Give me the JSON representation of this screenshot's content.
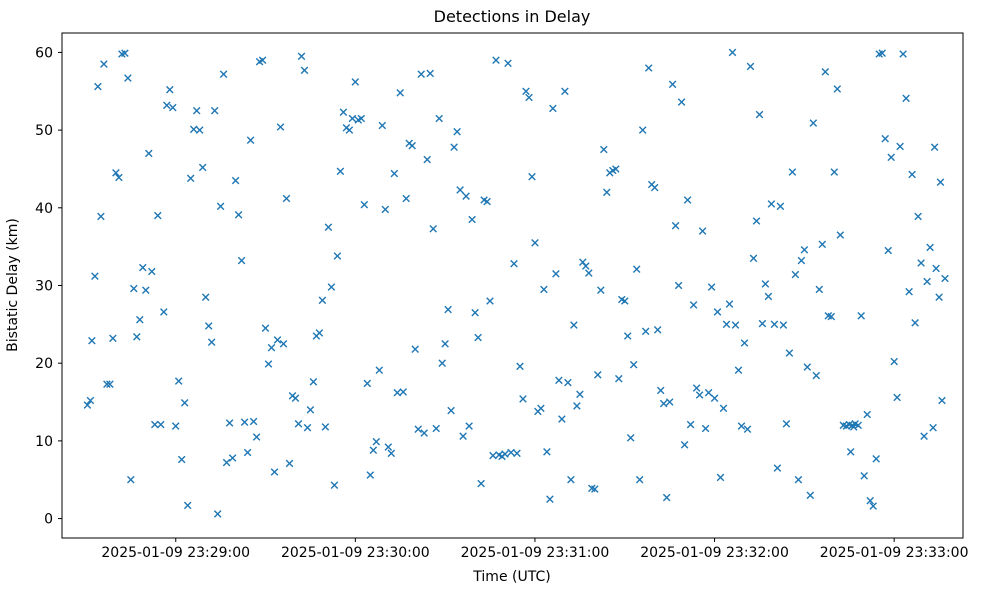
{
  "chart_data": {
    "type": "scatter",
    "title": "Detections in Delay",
    "xlabel": "Time (UTC)",
    "ylabel": "Bistatic Delay (km)",
    "marker": "x",
    "marker_color": "#1f77b4",
    "background_color": "#ffffff",
    "axes_color": "#000000",
    "grid": false,
    "legend": null,
    "x_ticks": [
      {
        "seconds": 60,
        "label": "2025-01-09 23:29:00"
      },
      {
        "seconds": 120,
        "label": "2025-01-09 23:30:00"
      },
      {
        "seconds": 180,
        "label": "2025-01-09 23:31:00"
      },
      {
        "seconds": 240,
        "label": "2025-01-09 23:32:00"
      },
      {
        "seconds": 300,
        "label": "2025-01-09 23:33:00"
      }
    ],
    "x_range_seconds": [
      22,
      323
    ],
    "y_ticks": [
      0,
      10,
      20,
      30,
      40,
      50,
      60
    ],
    "ylim": [
      -2.5,
      62.5
    ],
    "points": [
      [
        30.5,
        14.6
      ],
      [
        31.5,
        15.2
      ],
      [
        32,
        22.9
      ],
      [
        33,
        31.2
      ],
      [
        34,
        55.6
      ],
      [
        35,
        38.9
      ],
      [
        36,
        58.5
      ],
      [
        37,
        17.3
      ],
      [
        38,
        17.3
      ],
      [
        39,
        23.2
      ],
      [
        40,
        44.5
      ],
      [
        41,
        43.9
      ],
      [
        42,
        59.8
      ],
      [
        43,
        59.9
      ],
      [
        44,
        56.7
      ],
      [
        45,
        5.0
      ],
      [
        46,
        29.6
      ],
      [
        47,
        23.4
      ],
      [
        48,
        25.6
      ],
      [
        49,
        32.3
      ],
      [
        50,
        29.4
      ],
      [
        51,
        47.0
      ],
      [
        52,
        31.8
      ],
      [
        53,
        12.1
      ],
      [
        54,
        39.0
      ],
      [
        55,
        12.1
      ],
      [
        56,
        26.6
      ],
      [
        57,
        53.2
      ],
      [
        58,
        55.2
      ],
      [
        59,
        52.9
      ],
      [
        60,
        11.9
      ],
      [
        61,
        17.7
      ],
      [
        62,
        7.6
      ],
      [
        63,
        14.9
      ],
      [
        64,
        1.7
      ],
      [
        65,
        43.8
      ],
      [
        66,
        50.1
      ],
      [
        67,
        52.5
      ],
      [
        68,
        50.0
      ],
      [
        69,
        45.2
      ],
      [
        70,
        28.5
      ],
      [
        71,
        24.8
      ],
      [
        72,
        22.7
      ],
      [
        73,
        52.5
      ],
      [
        74,
        0.6
      ],
      [
        75,
        40.2
      ],
      [
        76,
        57.2
      ],
      [
        77,
        7.2
      ],
      [
        78,
        12.3
      ],
      [
        79,
        7.8
      ],
      [
        80,
        43.5
      ],
      [
        81,
        39.1
      ],
      [
        82,
        33.2
      ],
      [
        83,
        12.4
      ],
      [
        84,
        8.5
      ],
      [
        85,
        48.7
      ],
      [
        86,
        12.5
      ],
      [
        87,
        10.5
      ],
      [
        88,
        58.8
      ],
      [
        89,
        59.0
      ],
      [
        90,
        24.5
      ],
      [
        91,
        19.9
      ],
      [
        92,
        22.0
      ],
      [
        93,
        6.0
      ],
      [
        94,
        23.0
      ],
      [
        95,
        50.4
      ],
      [
        96,
        22.5
      ],
      [
        97,
        41.2
      ],
      [
        98,
        7.1
      ],
      [
        99,
        15.8
      ],
      [
        100,
        15.5
      ],
      [
        101,
        12.2
      ],
      [
        102,
        59.5
      ],
      [
        103,
        57.7
      ],
      [
        104,
        11.7
      ],
      [
        105,
        14.0
      ],
      [
        106,
        17.6
      ],
      [
        107,
        23.5
      ],
      [
        108,
        23.9
      ],
      [
        109,
        28.1
      ],
      [
        110,
        11.8
      ],
      [
        111,
        37.5
      ],
      [
        112,
        29.8
      ],
      [
        113,
        4.3
      ],
      [
        114,
        33.8
      ],
      [
        115,
        44.7
      ],
      [
        116,
        52.3
      ],
      [
        117,
        50.3
      ],
      [
        118,
        50.0
      ],
      [
        119,
        51.5
      ],
      [
        120,
        56.2
      ],
      [
        121,
        51.3
      ],
      [
        122,
        51.5
      ],
      [
        123,
        40.4
      ],
      [
        124,
        17.4
      ],
      [
        125,
        5.6
      ],
      [
        126,
        8.8
      ],
      [
        127,
        9.9
      ],
      [
        128,
        19.1
      ],
      [
        129,
        50.6
      ],
      [
        130,
        39.8
      ],
      [
        131,
        9.2
      ],
      [
        132,
        8.4
      ],
      [
        133,
        44.4
      ],
      [
        134,
        16.2
      ],
      [
        135,
        54.8
      ],
      [
        136,
        16.3
      ],
      [
        137,
        41.2
      ],
      [
        138,
        48.3
      ],
      [
        139,
        48.0
      ],
      [
        140,
        21.8
      ],
      [
        141,
        11.5
      ],
      [
        142,
        57.2
      ],
      [
        143,
        11.0
      ],
      [
        144,
        46.2
      ],
      [
        145,
        57.3
      ],
      [
        146,
        37.3
      ],
      [
        147,
        11.6
      ],
      [
        148,
        51.5
      ],
      [
        149,
        20.0
      ],
      [
        150,
        22.5
      ],
      [
        151,
        26.9
      ],
      [
        152,
        13.9
      ],
      [
        153,
        47.8
      ],
      [
        154,
        49.8
      ],
      [
        155,
        42.3
      ],
      [
        156,
        10.6
      ],
      [
        157,
        41.5
      ],
      [
        158,
        11.9
      ],
      [
        159,
        38.5
      ],
      [
        160,
        26.5
      ],
      [
        161,
        23.3
      ],
      [
        162,
        4.5
      ],
      [
        163,
        41.0
      ],
      [
        164,
        40.8
      ],
      [
        165,
        28.0
      ],
      [
        166,
        8.1
      ],
      [
        167,
        59.0
      ],
      [
        168,
        8.2
      ],
      [
        169,
        8.0
      ],
      [
        170,
        8.3
      ],
      [
        171,
        58.6
      ],
      [
        172,
        8.5
      ],
      [
        173,
        32.8
      ],
      [
        174,
        8.4
      ],
      [
        175,
        19.6
      ],
      [
        176,
        15.4
      ],
      [
        177,
        55.0
      ],
      [
        178,
        54.2
      ],
      [
        179,
        44.0
      ],
      [
        180,
        35.5
      ],
      [
        181,
        13.8
      ],
      [
        182,
        14.2
      ],
      [
        183,
        29.5
      ],
      [
        184,
        8.6
      ],
      [
        185,
        2.5
      ],
      [
        186,
        52.8
      ],
      [
        187,
        31.5
      ],
      [
        188,
        17.8
      ],
      [
        189,
        12.8
      ],
      [
        190,
        55.0
      ],
      [
        191,
        17.5
      ],
      [
        192,
        5.0
      ],
      [
        193,
        24.9
      ],
      [
        194,
        14.5
      ],
      [
        195,
        16.0
      ],
      [
        196,
        33.0
      ],
      [
        197,
        32.5
      ],
      [
        198,
        31.6
      ],
      [
        199,
        3.9
      ],
      [
        200,
        3.8
      ],
      [
        201,
        18.5
      ],
      [
        202,
        29.4
      ],
      [
        203,
        47.5
      ],
      [
        204,
        42.0
      ],
      [
        205,
        44.5
      ],
      [
        206,
        44.8
      ],
      [
        207,
        45.0
      ],
      [
        208,
        18.0
      ],
      [
        209,
        28.2
      ],
      [
        210,
        28.0
      ],
      [
        211,
        23.5
      ],
      [
        212,
        10.4
      ],
      [
        213,
        19.8
      ],
      [
        214,
        32.1
      ],
      [
        215,
        5.0
      ],
      [
        216,
        50.0
      ],
      [
        217,
        24.1
      ],
      [
        218,
        58.0
      ],
      [
        219,
        43.0
      ],
      [
        220,
        42.6
      ],
      [
        221,
        24.3
      ],
      [
        222,
        16.5
      ],
      [
        223,
        14.8
      ],
      [
        224,
        2.7
      ],
      [
        225,
        15.0
      ],
      [
        226,
        55.9
      ],
      [
        227,
        37.7
      ],
      [
        228,
        30.0
      ],
      [
        229,
        53.6
      ],
      [
        230,
        9.5
      ],
      [
        231,
        41.0
      ],
      [
        232,
        12.1
      ],
      [
        233,
        27.5
      ],
      [
        234,
        16.8
      ],
      [
        235,
        15.9
      ],
      [
        236,
        37.0
      ],
      [
        237,
        11.6
      ],
      [
        238,
        16.2
      ],
      [
        239,
        29.8
      ],
      [
        240,
        15.5
      ],
      [
        241,
        26.6
      ],
      [
        242,
        5.3
      ],
      [
        243,
        14.2
      ],
      [
        244,
        25.0
      ],
      [
        245,
        27.6
      ],
      [
        246,
        60.0
      ],
      [
        247,
        24.9
      ],
      [
        248,
        19.1
      ],
      [
        249,
        11.9
      ],
      [
        250,
        22.6
      ],
      [
        251,
        11.5
      ],
      [
        252,
        58.2
      ],
      [
        253,
        33.5
      ],
      [
        254,
        38.3
      ],
      [
        255,
        52.0
      ],
      [
        256,
        25.1
      ],
      [
        257,
        30.2
      ],
      [
        258,
        28.6
      ],
      [
        259,
        40.5
      ],
      [
        260,
        25.0
      ],
      [
        261,
        6.5
      ],
      [
        262,
        40.2
      ],
      [
        263,
        24.9
      ],
      [
        264,
        12.2
      ],
      [
        265,
        21.3
      ],
      [
        266,
        44.6
      ],
      [
        267,
        31.4
      ],
      [
        268,
        5.0
      ],
      [
        269,
        33.2
      ],
      [
        270,
        34.6
      ],
      [
        271,
        19.5
      ],
      [
        272,
        3.0
      ],
      [
        273,
        50.9
      ],
      [
        274,
        18.4
      ],
      [
        275,
        29.5
      ],
      [
        276,
        35.3
      ],
      [
        277,
        57.5
      ],
      [
        278,
        26.1
      ],
      [
        279,
        26.0
      ],
      [
        280,
        44.6
      ],
      [
        281,
        55.3
      ],
      [
        282,
        36.5
      ],
      [
        283,
        12.0
      ],
      [
        284,
        11.9
      ],
      [
        285,
        12.1
      ],
      [
        285.5,
        8.6
      ],
      [
        286,
        12.0
      ],
      [
        286.5,
        11.8
      ],
      [
        287,
        12.2
      ],
      [
        288,
        12.0
      ],
      [
        289,
        26.1
      ],
      [
        290,
        5.5
      ],
      [
        291,
        13.4
      ],
      [
        292,
        2.3
      ],
      [
        293,
        1.6
      ],
      [
        294,
        7.7
      ],
      [
        295,
        59.8
      ],
      [
        296,
        59.9
      ],
      [
        297,
        48.9
      ],
      [
        298,
        34.5
      ],
      [
        299,
        46.5
      ],
      [
        300,
        20.2
      ],
      [
        301,
        15.6
      ],
      [
        302,
        47.9
      ],
      [
        303,
        59.8
      ],
      [
        304,
        54.1
      ],
      [
        305,
        29.2
      ],
      [
        306,
        44.3
      ],
      [
        307,
        25.2
      ],
      [
        308,
        38.9
      ],
      [
        309,
        32.9
      ],
      [
        310,
        10.6
      ],
      [
        311,
        30.5
      ],
      [
        312,
        34.9
      ],
      [
        313,
        11.7
      ],
      [
        313.5,
        47.8
      ],
      [
        314,
        32.2
      ],
      [
        315,
        28.5
      ],
      [
        315.5,
        43.3
      ],
      [
        316,
        15.2
      ],
      [
        317,
        30.9
      ]
    ]
  }
}
